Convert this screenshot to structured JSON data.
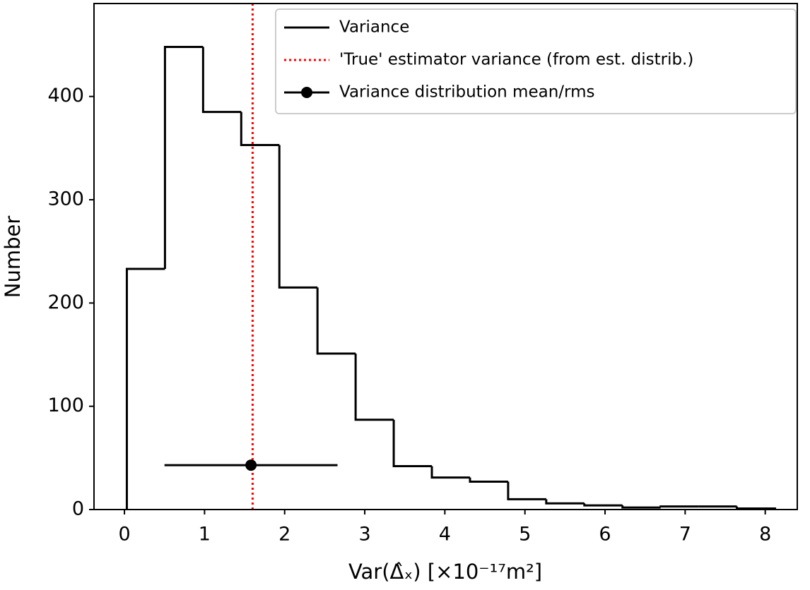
{
  "chart_data": {
    "type": "histogram",
    "xlabel": "Var(Δ̂ₓ) [×10⁻¹⁷m²]",
    "ylabel": "Number",
    "bins": [
      0.03,
      0.506,
      0.982,
      1.458,
      1.934,
      2.41,
      2.886,
      3.362,
      3.838,
      4.314,
      4.79,
      5.266,
      5.742,
      6.218,
      6.694,
      7.17,
      7.646,
      8.122
    ],
    "series": [
      {
        "name": "Variance",
        "color": "#000000",
        "values": [
          233,
          448,
          385,
          353,
          215,
          151,
          87,
          42,
          31,
          27,
          10,
          6,
          4,
          2,
          3,
          3,
          1
        ]
      }
    ],
    "vlines": [
      {
        "name": "'True' estimator variance (from est. distrib.)",
        "color": "#ff0000",
        "x": 1.6
      }
    ],
    "errorbars": [
      {
        "name": "Variance distribution mean/rms",
        "color": "#000000",
        "x": 1.58,
        "y": 43,
        "xerr": 1.08
      }
    ],
    "xlim": [
      -0.38,
      8.4
    ],
    "ylim": [
      0,
      490
    ],
    "xticks": [
      0,
      1,
      2,
      3,
      4,
      5,
      6,
      7,
      8
    ],
    "yticks": [
      0,
      100,
      200,
      300,
      400
    ],
    "legend": "upper right"
  }
}
